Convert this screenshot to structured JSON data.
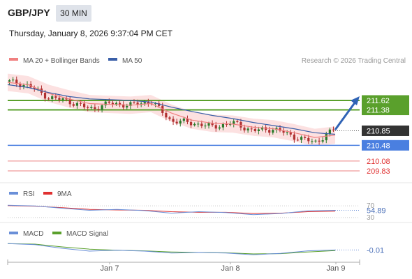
{
  "header": {
    "pair": "GBP/JPY",
    "timeframe": "30 MIN",
    "datetime": "Thursday, January 8, 2026 9:37:04 PM CET"
  },
  "legend": {
    "ma20": "MA 20 + Bollinger Bands",
    "ma50": "MA 50",
    "rsi": "RSI",
    "rsi_ma": "9MA",
    "macd": "MACD",
    "macd_signal": "MACD Signal"
  },
  "watermark": "Research © 2026 Trading Central",
  "colors": {
    "ma20": "#f08080",
    "bollinger_fill": "#fbdcdc",
    "ma50": "#3a5fa8",
    "resistance": "#5aa02c",
    "support": "#4a7fe0",
    "pivot": "#333333",
    "extra_levels": "#e03030",
    "candle_up": "#2a7a2a",
    "candle_down": "#b03030",
    "arrow": "#2f63b5"
  },
  "chart_data": [
    {
      "type": "line",
      "title": "GBP/JPY 30 MIN price",
      "ylim": [
        209.6,
        212.4
      ],
      "x_tick_labels": [
        "Jan 7",
        "Jan 8",
        "Jan 9"
      ],
      "price_x": [
        0,
        6,
        12,
        18,
        24,
        30,
        36,
        42,
        48,
        54,
        60,
        66,
        72,
        78,
        84,
        90,
        96
      ],
      "price": [
        212.1,
        212.0,
        211.7,
        211.6,
        211.4,
        211.55,
        211.5,
        211.6,
        211.1,
        211.05,
        210.95,
        211.05,
        210.85,
        210.9,
        210.7,
        210.55,
        210.9
      ],
      "ma20": [
        212.08,
        212.02,
        211.8,
        211.66,
        211.54,
        211.52,
        211.5,
        211.54,
        211.3,
        211.12,
        211.04,
        211.02,
        210.94,
        210.9,
        210.8,
        210.68,
        210.74
      ],
      "ma50": [
        212.02,
        211.95,
        211.82,
        211.72,
        211.66,
        211.64,
        211.62,
        211.58,
        211.45,
        211.34,
        211.24,
        211.16,
        211.06,
        210.98,
        210.9,
        210.8,
        210.76
      ],
      "levels": [
        {
          "label": "211.62",
          "value": 211.62,
          "kind": "resistance"
        },
        {
          "label": "211.38",
          "value": 211.38,
          "kind": "resistance"
        },
        {
          "label": "210.85",
          "value": 210.85,
          "kind": "pivot"
        },
        {
          "label": "210.48",
          "value": 210.48,
          "kind": "support"
        },
        {
          "label": "210.08",
          "value": 210.08,
          "kind": "extra"
        },
        {
          "label": "209.83",
          "value": 209.83,
          "kind": "extra"
        }
      ]
    },
    {
      "type": "line",
      "title": "RSI",
      "ylim": [
        25,
        80
      ],
      "tick_labels": [
        "70",
        "30"
      ],
      "last_value": "54.89",
      "x": [
        0,
        8,
        16,
        24,
        32,
        40,
        48,
        56,
        64,
        72,
        80,
        88,
        96
      ],
      "rsi": [
        72,
        70,
        62,
        55,
        58,
        54,
        45,
        50,
        47,
        40,
        44,
        53,
        55
      ],
      "rsi_ma": [
        71,
        69,
        64,
        58,
        56,
        55,
        50,
        48,
        48,
        44,
        45,
        50,
        52
      ]
    },
    {
      "type": "line",
      "title": "MACD",
      "last_value": "-0.01",
      "ylim": [
        -0.3,
        0.3
      ],
      "x": [
        0,
        8,
        16,
        24,
        32,
        40,
        48,
        56,
        64,
        72,
        80,
        88,
        96
      ],
      "macd": [
        0.22,
        0.18,
        0.05,
        -0.05,
        -0.02,
        -0.05,
        -0.12,
        -0.1,
        -0.12,
        -0.18,
        -0.13,
        -0.04,
        -0.01
      ],
      "macd_signal": [
        0.22,
        0.2,
        0.1,
        0.02,
        -0.02,
        -0.04,
        -0.08,
        -0.1,
        -0.11,
        -0.15,
        -0.14,
        -0.08,
        -0.03
      ]
    }
  ]
}
